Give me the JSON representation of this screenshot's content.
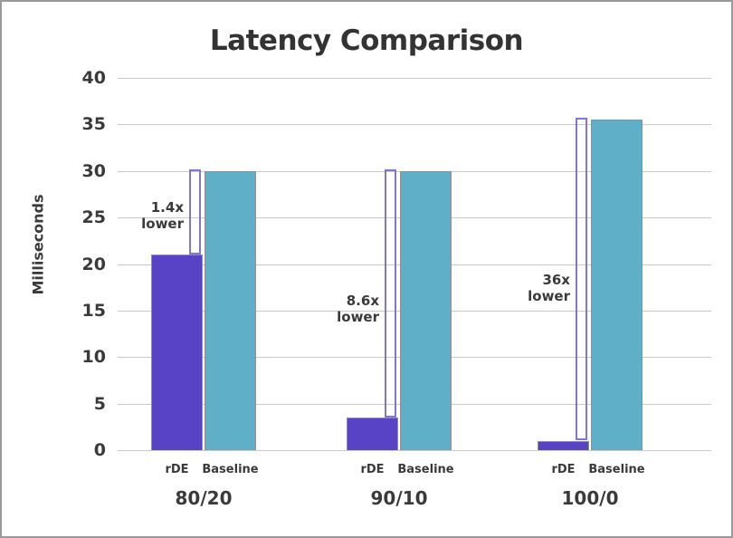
{
  "title": "Latency Comparison",
  "y_axis_label": "Milliseconds",
  "colors": {
    "rde_bar": "#5843c6",
    "baseline_bar": "#5fafc8",
    "bracket": "#8276d4",
    "gridline": "#c9c9c9",
    "bar_border": "#909090",
    "text": "#3a3a3a",
    "title_text": "#333333",
    "frame_border": "#9a9a9a",
    "background": "#ffffff"
  },
  "chart_data": {
    "type": "bar",
    "title": "Latency Comparison",
    "xlabel": "",
    "ylabel": "Milliseconds",
    "ylim": [
      0,
      40
    ],
    "yticks": [
      0,
      5,
      10,
      15,
      20,
      25,
      30,
      35,
      40
    ],
    "grid": true,
    "legend_position": "labels-under-bars",
    "categories": [
      "80/20",
      "90/10",
      "100/0"
    ],
    "series": [
      {
        "name": "rDE",
        "color": "#5843c6",
        "values": [
          21,
          3.5,
          1
        ]
      },
      {
        "name": "Baseline",
        "color": "#5fafc8",
        "values": [
          30,
          30,
          35.5
        ]
      }
    ],
    "annotations": [
      {
        "category": "80/20",
        "text": "1.4x lower",
        "line1": "1.4x",
        "line2": "lower",
        "center_y_value": 25.2
      },
      {
        "category": "90/10",
        "text": "8.6x lower",
        "line1": "8.6x",
        "line2": "lower",
        "center_y_value": 15.2
      },
      {
        "category": "100/0",
        "text": "36x lower",
        "line1": "36x",
        "line2": "lower",
        "center_y_value": 17.4
      }
    ]
  }
}
